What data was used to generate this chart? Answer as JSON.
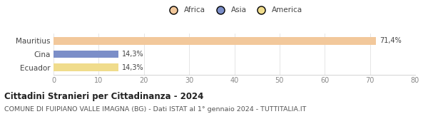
{
  "categories": [
    "Mauritius",
    "Cina",
    "Ecuador"
  ],
  "values": [
    71.4,
    14.3,
    14.3
  ],
  "bar_colors": [
    "#f2c89b",
    "#7b8ec8",
    "#f0dc8c"
  ],
  "continent_labels": [
    "Africa",
    "Asia",
    "America"
  ],
  "legend_colors": [
    "#f2c89b",
    "#7b8ec8",
    "#f0dc8c"
  ],
  "bar_labels": [
    "71,4%",
    "14,3%",
    "14,3%"
  ],
  "xlim": [
    0,
    80
  ],
  "xticks": [
    0,
    10,
    20,
    30,
    40,
    50,
    60,
    70,
    80
  ],
  "title": "Cittadini Stranieri per Cittadinanza - 2024",
  "subtitle": "COMUNE DI FUIPIANO VALLE IMAGNA (BG) - Dati ISTAT al 1° gennaio 2024 - TUTTITALIA.IT",
  "title_fontsize": 8.5,
  "subtitle_fontsize": 6.8,
  "background_color": "#ffffff",
  "bar_height": 0.55
}
